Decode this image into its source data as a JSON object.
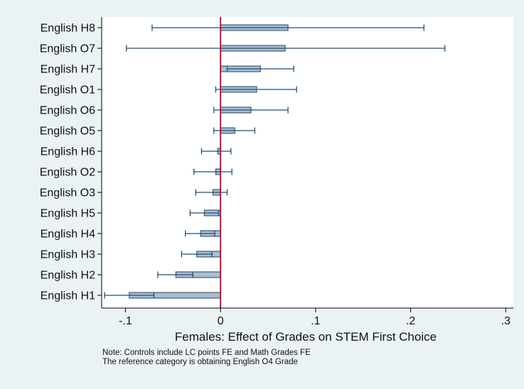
{
  "chart_data": {
    "type": "bar",
    "orientation": "horizontal",
    "categories": [
      "English H8",
      "English O7",
      "English H7",
      "English O1",
      "English O6",
      "English O5",
      "English H6",
      "English O2",
      "English O3",
      "English H5",
      "English H4",
      "English H3",
      "English H2",
      "English H1"
    ],
    "values": [
      0.071,
      0.068,
      0.042,
      0.038,
      0.032,
      0.015,
      -0.003,
      -0.005,
      -0.008,
      -0.017,
      -0.021,
      -0.025,
      -0.047,
      -0.096
    ],
    "ci_low": [
      -0.072,
      -0.099,
      0.007,
      -0.005,
      -0.007,
      -0.007,
      -0.02,
      -0.028,
      -0.026,
      -0.032,
      -0.037,
      -0.041,
      -0.066,
      -0.122
    ],
    "ci_high": [
      0.214,
      0.236,
      0.077,
      0.08,
      0.071,
      0.036,
      0.011,
      0.012,
      0.007,
      -0.002,
      -0.006,
      -0.009,
      -0.029,
      -0.07
    ],
    "xlabel": "Females: Effect of Grades on STEM First Choice",
    "xlim": [
      -0.125,
      0.308
    ],
    "xticks": [
      -0.1,
      0,
      0.1,
      0.2,
      0.3
    ],
    "xtick_labels": [
      "-.1",
      "0",
      ".1",
      ".2",
      ".3"
    ],
    "reference_line": 0,
    "grid": false,
    "colors": {
      "bar_fill": "#a9bed2",
      "bar_edge": "#27435b",
      "error_bar": "#1f4e79",
      "reference_line": "#c0143c",
      "plot_background": "#ffffff",
      "outer_background": "#eaf2f3"
    }
  },
  "notes": [
    "Note: Controls include LC points FE and Math Grades FE",
    "The reference category is obtaining English O4 Grade"
  ]
}
